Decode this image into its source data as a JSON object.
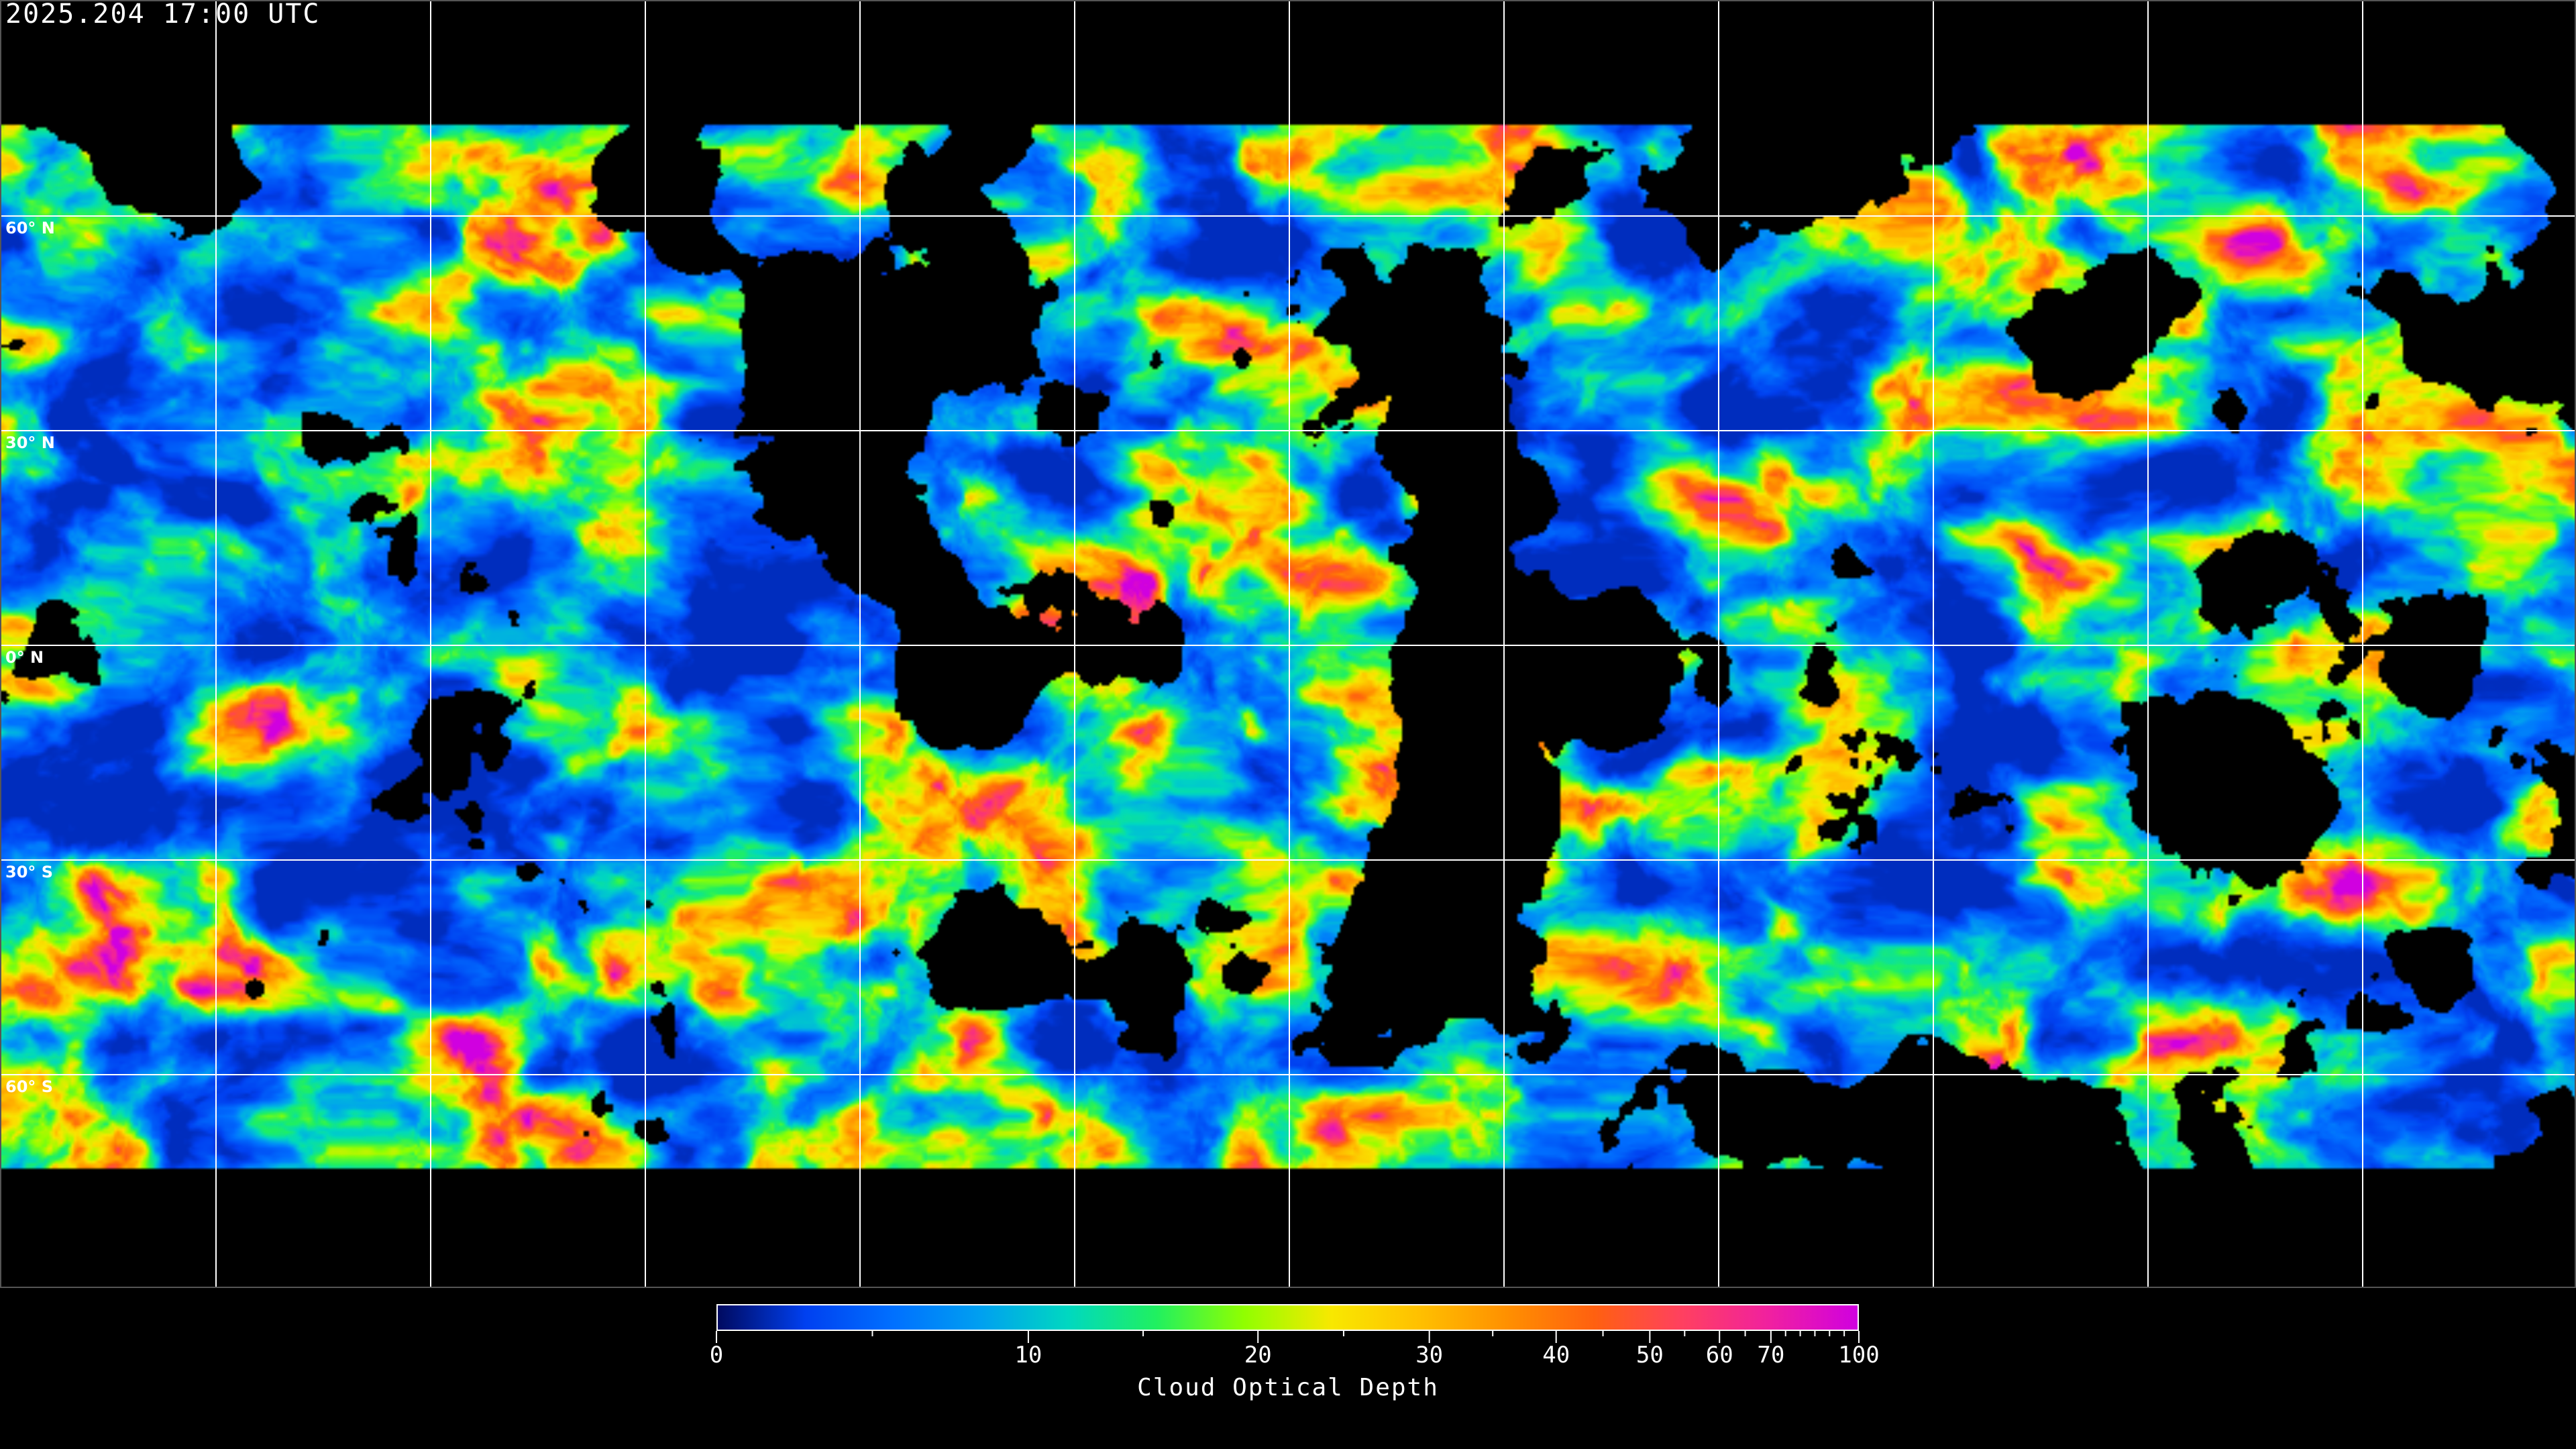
{
  "header": {
    "timestamp": "2025.204 17:00 UTC"
  },
  "map": {
    "projection": "equirectangular",
    "gridline_color": "#ffffff",
    "lat_labels": [
      {
        "lat": 60,
        "text": "60° N"
      },
      {
        "lat": 30,
        "text": "30° N"
      },
      {
        "lat": 0,
        "text": "0° N"
      },
      {
        "lat": -30,
        "text": "30° S"
      },
      {
        "lat": -60,
        "text": "60° S"
      }
    ],
    "gridline_spacing_deg": 30
  },
  "colorbar": {
    "label": "Cloud Optical Depth",
    "range": [
      0,
      100
    ],
    "major_ticks": [
      {
        "value": 0,
        "text": "0"
      },
      {
        "value": 10,
        "text": "10"
      },
      {
        "value": 20,
        "text": "20"
      },
      {
        "value": 30,
        "text": "30"
      },
      {
        "value": 40,
        "text": "40"
      },
      {
        "value": 50,
        "text": "50"
      },
      {
        "value": 60,
        "text": "60"
      },
      {
        "value": 70,
        "text": "70"
      },
      {
        "value": 100,
        "text": "100"
      }
    ],
    "minor_ticks": [
      5,
      15,
      25,
      35,
      45,
      55,
      65,
      75,
      80,
      85,
      90,
      95
    ],
    "colors": [
      "#000a60",
      "#0040f0",
      "#0070ff",
      "#00a0f0",
      "#00d8c0",
      "#20f060",
      "#90ff00",
      "#f8e800",
      "#ffc000",
      "#ff9000",
      "#ff6010",
      "#ff4060",
      "#f020a0",
      "#d000e0"
    ]
  }
}
